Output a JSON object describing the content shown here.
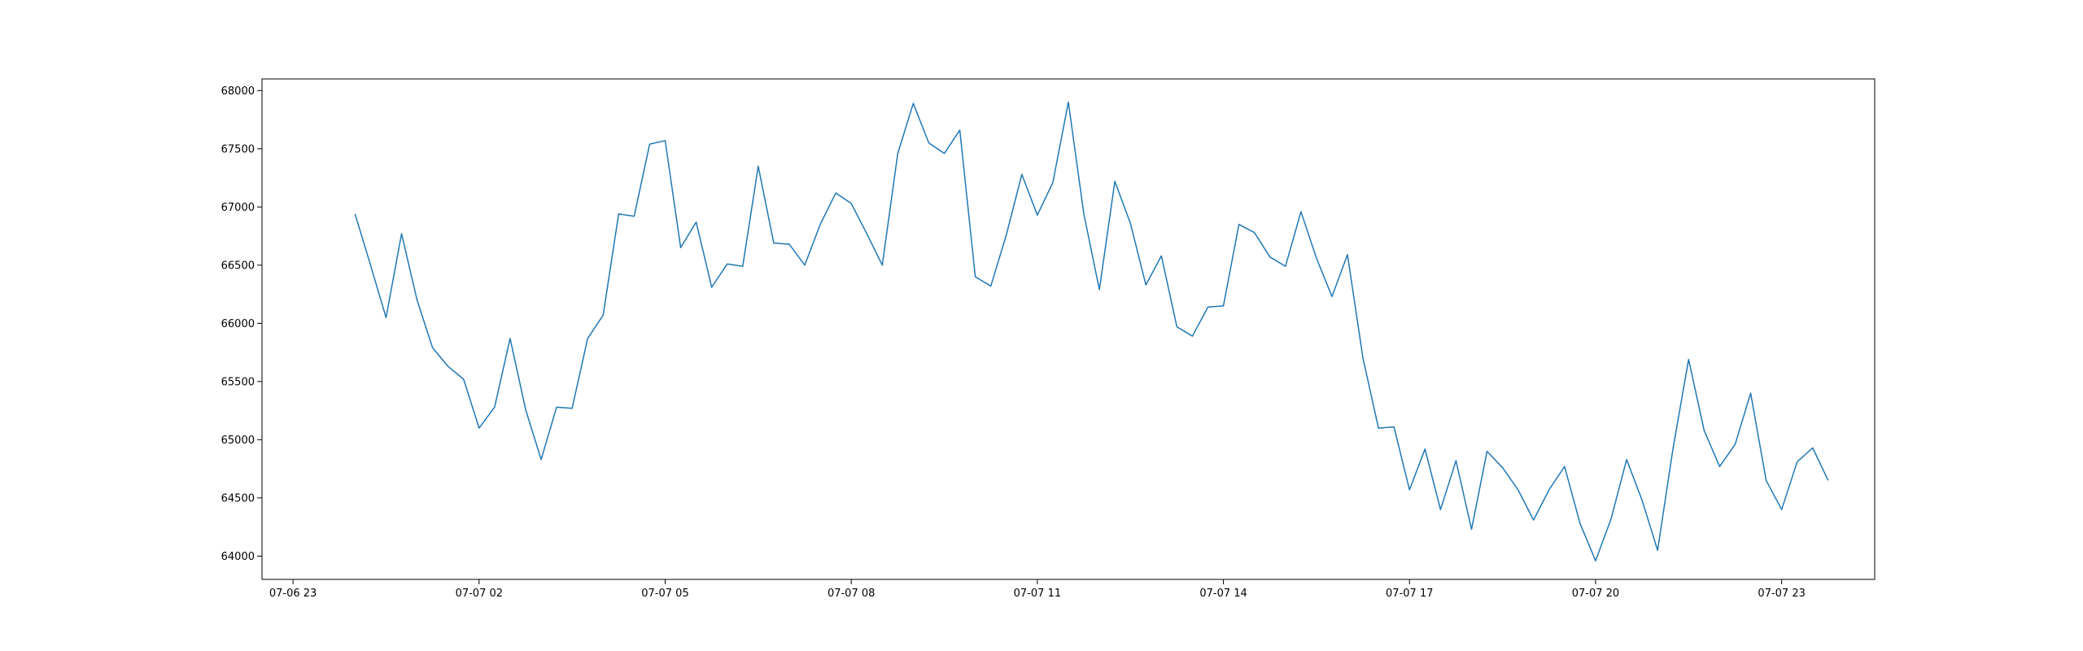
{
  "chart_data": {
    "type": "line",
    "title": "",
    "xlabel": "",
    "ylabel": "",
    "grid": false,
    "line_color": "#1f77b4",
    "x_unit": "hours after 07-06 23:00",
    "xlim": [
      -0.5,
      25.5
    ],
    "ylim": [
      63800,
      68100
    ],
    "x_ticks": [
      {
        "value": 0,
        "label": "07-06 23"
      },
      {
        "value": 3,
        "label": "07-07 02"
      },
      {
        "value": 6,
        "label": "07-07 05"
      },
      {
        "value": 9,
        "label": "07-07 08"
      },
      {
        "value": 12,
        "label": "07-07 11"
      },
      {
        "value": 15,
        "label": "07-07 14"
      },
      {
        "value": 18,
        "label": "07-07 17"
      },
      {
        "value": 21,
        "label": "07-07 20"
      },
      {
        "value": 24,
        "label": "07-07 23"
      }
    ],
    "y_ticks": [
      64000,
      64500,
      65000,
      65500,
      66000,
      66500,
      67000,
      67500,
      68000
    ],
    "series": [
      {
        "name": "",
        "x_start": 1.0,
        "x_step": 0.25,
        "values": [
          66940,
          66500,
          66050,
          66770,
          66200,
          65790,
          65630,
          65520,
          65100,
          65280,
          65870,
          65260,
          64830,
          65280,
          65270,
          65870,
          66070,
          66940,
          66920,
          67540,
          67570,
          66650,
          66870,
          66310,
          66510,
          66490,
          67350,
          66690,
          66680,
          66500,
          66850,
          67120,
          67030,
          66770,
          66500,
          67460,
          67890,
          67550,
          67460,
          67660,
          66400,
          66320,
          66760,
          67280,
          66930,
          67210,
          67900,
          66940,
          66290,
          67220,
          66860,
          66330,
          66580,
          65970,
          65890,
          66140,
          66150,
          66850,
          66780,
          66570,
          66490,
          66960,
          66560,
          66230,
          66590,
          65700,
          65100,
          65110,
          64570,
          64920,
          64400,
          64820,
          64230,
          64900,
          64760,
          64570,
          64310,
          64570,
          64770,
          64280,
          63960,
          64320,
          64830,
          64480,
          64050,
          64930,
          65690,
          65080,
          64770,
          64960,
          65400,
          64650,
          64400,
          64810,
          64930,
          64650
        ]
      }
    ]
  }
}
